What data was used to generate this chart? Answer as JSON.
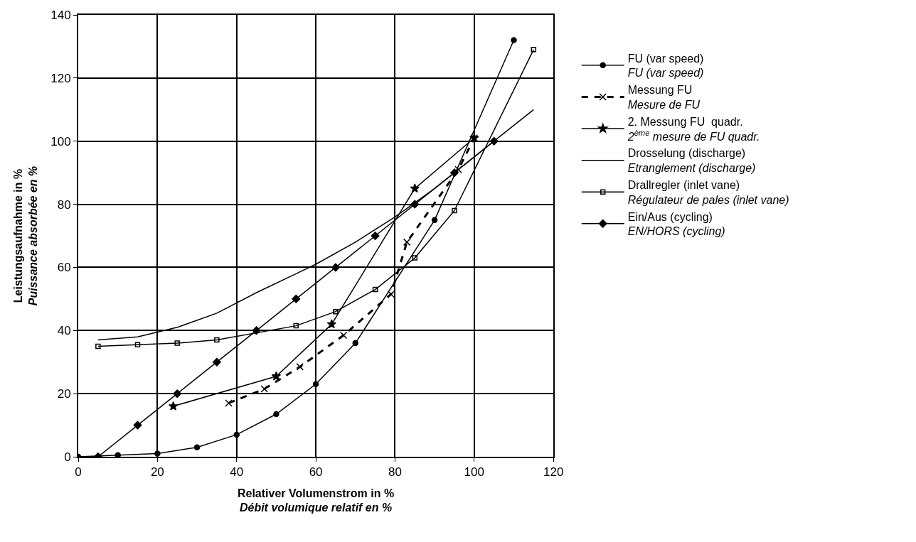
{
  "chart_data": {
    "type": "line",
    "xlabel": "Relativer Volumenstrom in %\nDébit volumique relatif en %",
    "ylabel": "Leistungsaufnahme in %\nPuissance absorbée en %",
    "xlim": [
      0,
      120
    ],
    "xticks": [
      0,
      20,
      40,
      60,
      80,
      100,
      120
    ],
    "ylim": [
      0,
      140
    ],
    "yticks": [
      0,
      20,
      40,
      60,
      80,
      100,
      120,
      140
    ],
    "grid": true,
    "legend": "right",
    "series": [
      {
        "name": "FU (var speed)\nFU (var speed)",
        "color": "#000000",
        "marker": "circle",
        "line_style": "solid",
        "x": [
          0,
          10,
          20,
          30,
          40,
          50,
          60,
          70,
          90,
          110
        ],
        "values": [
          0,
          0.5,
          1,
          3,
          7,
          13.5,
          23,
          36,
          75,
          132
        ]
      },
      {
        "name": "Messung FU\nMesure de FU",
        "color": "#000000",
        "marker": "cross",
        "line_style": "dashed",
        "x": [
          38,
          47,
          56,
          67,
          79,
          83,
          96,
          100
        ],
        "values": [
          17,
          21.5,
          28.5,
          38.5,
          51.5,
          68,
          91,
          101
        ]
      },
      {
        "name": "2. Messung FU  quadr.\n2$^{ème}$ mesure de FU quadr.",
        "color": "#000000",
        "marker": "star",
        "line_style": "solid",
        "x": [
          24,
          50,
          64,
          85,
          100
        ],
        "values": [
          16,
          25.5,
          42,
          85,
          101
        ]
      },
      {
        "name": "Drosselung (discharge)\nEtranglement (discharge)",
        "color": "#000000",
        "marker": "none",
        "line_style": "solid",
        "x": [
          5,
          15,
          25,
          35,
          45,
          55,
          60,
          70,
          80,
          90,
          105,
          115
        ],
        "values": [
          37,
          38,
          41,
          45.5,
          52,
          58,
          61,
          68,
          76,
          85,
          100,
          110
        ]
      },
      {
        "name": "Drallregler (inlet vane)\nRégulateur de pales (inlet vane)",
        "color": "#000000",
        "marker": "square",
        "line_style": "solid",
        "x": [
          5,
          15,
          25,
          35,
          55,
          65,
          75,
          85,
          95,
          115
        ],
        "values": [
          35,
          35.5,
          36,
          37,
          41.5,
          46,
          53,
          63,
          78,
          129
        ]
      },
      {
        "name": "Ein/Aus (cycling)\nEN/HORS (cycling)",
        "color": "#000000",
        "marker": "diamond",
        "line_style": "solid",
        "x": [
          5,
          15,
          25,
          35,
          45,
          55,
          65,
          75,
          85,
          95,
          105
        ],
        "values": [
          0,
          10,
          20,
          30,
          40,
          50,
          60,
          70,
          80,
          90,
          100
        ]
      }
    ]
  }
}
